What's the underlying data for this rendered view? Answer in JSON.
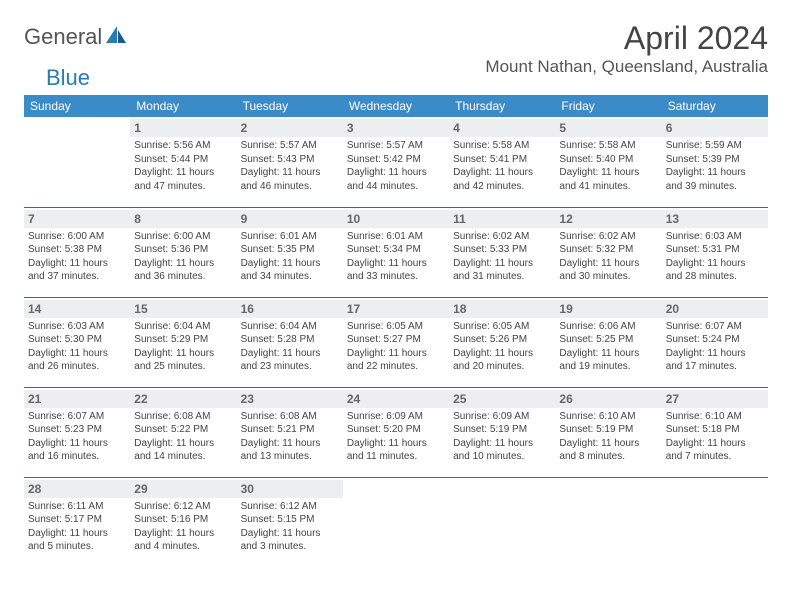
{
  "brand": {
    "general": "General",
    "blue": "Blue"
  },
  "title": "April 2024",
  "location": "Mount Nathan, Queensland, Australia",
  "colors": {
    "header_bg": "#3b8bc8",
    "header_text": "#ffffff",
    "daynum_bg": "#eceeef",
    "border": "#3b6a8f",
    "logo_blue": "#2a7ab8",
    "text": "#444444"
  },
  "daysOfWeek": [
    "Sunday",
    "Monday",
    "Tuesday",
    "Wednesday",
    "Thursday",
    "Friday",
    "Saturday"
  ],
  "weeks": [
    [
      null,
      {
        "n": "1",
        "sr": "Sunrise: 5:56 AM",
        "ss": "Sunset: 5:44 PM",
        "dl": "Daylight: 11 hours and 47 minutes."
      },
      {
        "n": "2",
        "sr": "Sunrise: 5:57 AM",
        "ss": "Sunset: 5:43 PM",
        "dl": "Daylight: 11 hours and 46 minutes."
      },
      {
        "n": "3",
        "sr": "Sunrise: 5:57 AM",
        "ss": "Sunset: 5:42 PM",
        "dl": "Daylight: 11 hours and 44 minutes."
      },
      {
        "n": "4",
        "sr": "Sunrise: 5:58 AM",
        "ss": "Sunset: 5:41 PM",
        "dl": "Daylight: 11 hours and 42 minutes."
      },
      {
        "n": "5",
        "sr": "Sunrise: 5:58 AM",
        "ss": "Sunset: 5:40 PM",
        "dl": "Daylight: 11 hours and 41 minutes."
      },
      {
        "n": "6",
        "sr": "Sunrise: 5:59 AM",
        "ss": "Sunset: 5:39 PM",
        "dl": "Daylight: 11 hours and 39 minutes."
      }
    ],
    [
      {
        "n": "7",
        "sr": "Sunrise: 6:00 AM",
        "ss": "Sunset: 5:38 PM",
        "dl": "Daylight: 11 hours and 37 minutes."
      },
      {
        "n": "8",
        "sr": "Sunrise: 6:00 AM",
        "ss": "Sunset: 5:36 PM",
        "dl": "Daylight: 11 hours and 36 minutes."
      },
      {
        "n": "9",
        "sr": "Sunrise: 6:01 AM",
        "ss": "Sunset: 5:35 PM",
        "dl": "Daylight: 11 hours and 34 minutes."
      },
      {
        "n": "10",
        "sr": "Sunrise: 6:01 AM",
        "ss": "Sunset: 5:34 PM",
        "dl": "Daylight: 11 hours and 33 minutes."
      },
      {
        "n": "11",
        "sr": "Sunrise: 6:02 AM",
        "ss": "Sunset: 5:33 PM",
        "dl": "Daylight: 11 hours and 31 minutes."
      },
      {
        "n": "12",
        "sr": "Sunrise: 6:02 AM",
        "ss": "Sunset: 5:32 PM",
        "dl": "Daylight: 11 hours and 30 minutes."
      },
      {
        "n": "13",
        "sr": "Sunrise: 6:03 AM",
        "ss": "Sunset: 5:31 PM",
        "dl": "Daylight: 11 hours and 28 minutes."
      }
    ],
    [
      {
        "n": "14",
        "sr": "Sunrise: 6:03 AM",
        "ss": "Sunset: 5:30 PM",
        "dl": "Daylight: 11 hours and 26 minutes."
      },
      {
        "n": "15",
        "sr": "Sunrise: 6:04 AM",
        "ss": "Sunset: 5:29 PM",
        "dl": "Daylight: 11 hours and 25 minutes."
      },
      {
        "n": "16",
        "sr": "Sunrise: 6:04 AM",
        "ss": "Sunset: 5:28 PM",
        "dl": "Daylight: 11 hours and 23 minutes."
      },
      {
        "n": "17",
        "sr": "Sunrise: 6:05 AM",
        "ss": "Sunset: 5:27 PM",
        "dl": "Daylight: 11 hours and 22 minutes."
      },
      {
        "n": "18",
        "sr": "Sunrise: 6:05 AM",
        "ss": "Sunset: 5:26 PM",
        "dl": "Daylight: 11 hours and 20 minutes."
      },
      {
        "n": "19",
        "sr": "Sunrise: 6:06 AM",
        "ss": "Sunset: 5:25 PM",
        "dl": "Daylight: 11 hours and 19 minutes."
      },
      {
        "n": "20",
        "sr": "Sunrise: 6:07 AM",
        "ss": "Sunset: 5:24 PM",
        "dl": "Daylight: 11 hours and 17 minutes."
      }
    ],
    [
      {
        "n": "21",
        "sr": "Sunrise: 6:07 AM",
        "ss": "Sunset: 5:23 PM",
        "dl": "Daylight: 11 hours and 16 minutes."
      },
      {
        "n": "22",
        "sr": "Sunrise: 6:08 AM",
        "ss": "Sunset: 5:22 PM",
        "dl": "Daylight: 11 hours and 14 minutes."
      },
      {
        "n": "23",
        "sr": "Sunrise: 6:08 AM",
        "ss": "Sunset: 5:21 PM",
        "dl": "Daylight: 11 hours and 13 minutes."
      },
      {
        "n": "24",
        "sr": "Sunrise: 6:09 AM",
        "ss": "Sunset: 5:20 PM",
        "dl": "Daylight: 11 hours and 11 minutes."
      },
      {
        "n": "25",
        "sr": "Sunrise: 6:09 AM",
        "ss": "Sunset: 5:19 PM",
        "dl": "Daylight: 11 hours and 10 minutes."
      },
      {
        "n": "26",
        "sr": "Sunrise: 6:10 AM",
        "ss": "Sunset: 5:19 PM",
        "dl": "Daylight: 11 hours and 8 minutes."
      },
      {
        "n": "27",
        "sr": "Sunrise: 6:10 AM",
        "ss": "Sunset: 5:18 PM",
        "dl": "Daylight: 11 hours and 7 minutes."
      }
    ],
    [
      {
        "n": "28",
        "sr": "Sunrise: 6:11 AM",
        "ss": "Sunset: 5:17 PM",
        "dl": "Daylight: 11 hours and 5 minutes."
      },
      {
        "n": "29",
        "sr": "Sunrise: 6:12 AM",
        "ss": "Sunset: 5:16 PM",
        "dl": "Daylight: 11 hours and 4 minutes."
      },
      {
        "n": "30",
        "sr": "Sunrise: 6:12 AM",
        "ss": "Sunset: 5:15 PM",
        "dl": "Daylight: 11 hours and 3 minutes."
      },
      null,
      null,
      null,
      null
    ]
  ]
}
